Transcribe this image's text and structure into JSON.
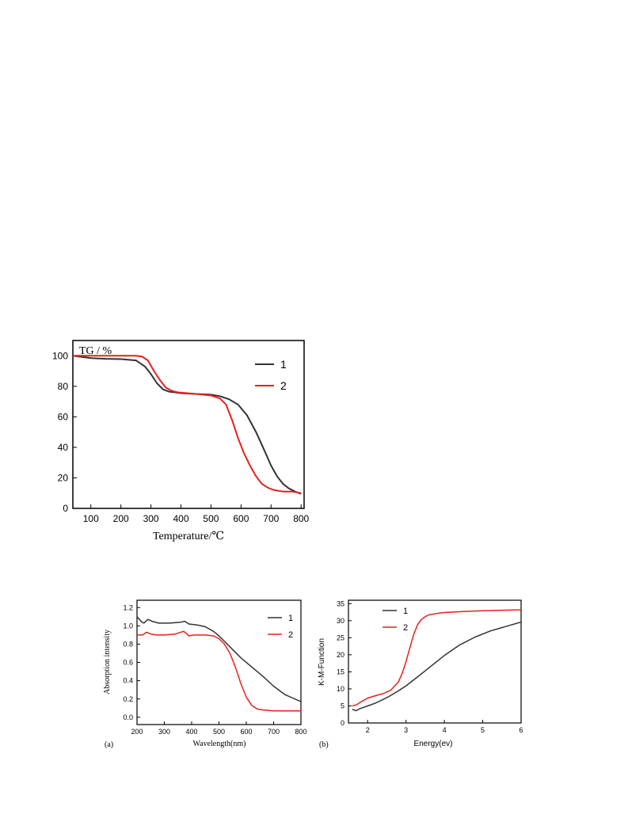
{
  "chart_data": [
    {
      "id": "tg",
      "type": "line",
      "title": "",
      "ylabel": "TG / %",
      "xlabel": "Temperature/℃",
      "xlim": [
        40,
        810
      ],
      "ylim": [
        0,
        110
      ],
      "xticks": [
        100,
        200,
        300,
        400,
        500,
        600,
        700,
        800
      ],
      "yticks": [
        0,
        20,
        40,
        60,
        80,
        100
      ],
      "grid": false,
      "legend": "top-right",
      "series": [
        {
          "name": "1",
          "color": "#333333",
          "x": [
            40,
            100,
            150,
            200,
            250,
            280,
            300,
            320,
            340,
            360,
            380,
            400,
            450,
            500,
            530,
            560,
            590,
            620,
            650,
            680,
            700,
            720,
            740,
            760,
            780,
            800
          ],
          "y": [
            100,
            98.5,
            98,
            97.8,
            97,
            93,
            88,
            82,
            78,
            76.5,
            76,
            75.5,
            75,
            74.5,
            73.5,
            71.5,
            68,
            61,
            50,
            37,
            28,
            21,
            16,
            13,
            11,
            9.5
          ]
        },
        {
          "name": "2",
          "color": "#e8201c",
          "x": [
            40,
            100,
            150,
            200,
            250,
            270,
            290,
            310,
            330,
            350,
            370,
            390,
            420,
            450,
            500,
            530,
            550,
            570,
            590,
            610,
            630,
            650,
            670,
            690,
            710,
            740,
            770,
            800
          ],
          "y": [
            100,
            100,
            100,
            100,
            100,
            99.5,
            97,
            90,
            84,
            79,
            77,
            76,
            75.5,
            75,
            74,
            72,
            68,
            58,
            46,
            36,
            28,
            21,
            16,
            13.5,
            12,
            11,
            11,
            10
          ]
        }
      ]
    },
    {
      "id": "absorption",
      "type": "line",
      "title": "",
      "ylabel": "Absorption intensity",
      "xlabel": "Wavelength(nm)",
      "panel_label": "(a)",
      "xlim": [
        200,
        800
      ],
      "ylim": [
        -0.08,
        1.28
      ],
      "xticks": [
        200,
        300,
        400,
        500,
        600,
        700,
        800
      ],
      "yticks": [
        0.0,
        0.2,
        0.4,
        0.6,
        0.8,
        1.0,
        1.2
      ],
      "ytick_labels": [
        "0.0",
        "0.2",
        "0.4",
        "0.6",
        "0.8",
        "1.0",
        "1.2"
      ],
      "grid": false,
      "legend": "top-right",
      "series": [
        {
          "name": "1",
          "color": "#333333",
          "x": [
            200,
            215,
            225,
            240,
            255,
            280,
            320,
            360,
            375,
            390,
            420,
            450,
            480,
            500,
            520,
            550,
            580,
            620,
            660,
            700,
            740,
            770,
            800
          ],
          "y": [
            1.1,
            1.05,
            1.03,
            1.07,
            1.05,
            1.03,
            1.03,
            1.04,
            1.05,
            1.02,
            1.01,
            0.99,
            0.94,
            0.89,
            0.83,
            0.74,
            0.65,
            0.55,
            0.45,
            0.34,
            0.25,
            0.21,
            0.17
          ]
        },
        {
          "name": "2",
          "color": "#e8201c",
          "x": [
            200,
            220,
            235,
            250,
            270,
            300,
            340,
            370,
            380,
            390,
            410,
            450,
            480,
            500,
            520,
            540,
            560,
            580,
            600,
            620,
            640,
            660,
            700,
            750,
            800
          ],
          "y": [
            0.9,
            0.9,
            0.93,
            0.91,
            0.9,
            0.9,
            0.91,
            0.94,
            0.92,
            0.89,
            0.9,
            0.9,
            0.89,
            0.86,
            0.8,
            0.7,
            0.55,
            0.37,
            0.22,
            0.13,
            0.09,
            0.08,
            0.07,
            0.07,
            0.07
          ]
        }
      ]
    },
    {
      "id": "km",
      "type": "line",
      "title": "",
      "ylabel": "K-M-Function",
      "xlabel": "Energy(ev)",
      "panel_label": "(b)",
      "xlim": [
        1.5,
        6
      ],
      "ylim": [
        0,
        36
      ],
      "xticks": [
        2,
        3,
        4,
        5,
        6
      ],
      "yticks": [
        0,
        5,
        10,
        15,
        20,
        25,
        30,
        35
      ],
      "grid": false,
      "legend": "top-left",
      "series": [
        {
          "name": "1",
          "color": "#333333",
          "x": [
            1.6,
            1.7,
            1.8,
            2.0,
            2.2,
            2.5,
            2.8,
            3.0,
            3.3,
            3.6,
            4.0,
            4.4,
            4.8,
            5.2,
            5.6,
            6.0
          ],
          "y": [
            4,
            3.6,
            4.2,
            5,
            5.8,
            7.4,
            9.4,
            10.9,
            13.5,
            16.2,
            19.8,
            22.9,
            25.2,
            27,
            28.3,
            29.6
          ]
        },
        {
          "name": "2",
          "color": "#e8201c",
          "x": [
            1.6,
            1.7,
            1.8,
            2.0,
            2.2,
            2.4,
            2.6,
            2.8,
            2.9,
            3.0,
            3.1,
            3.2,
            3.3,
            3.4,
            3.5,
            3.6,
            3.8,
            4.0,
            4.5,
            5.0,
            6.0
          ],
          "y": [
            5,
            5.3,
            6,
            7.3,
            8,
            8.6,
            9.6,
            12,
            14.5,
            18,
            22,
            26,
            28.8,
            30.3,
            31.2,
            31.7,
            32.1,
            32.4,
            32.7,
            32.9,
            33.2
          ]
        }
      ]
    }
  ]
}
